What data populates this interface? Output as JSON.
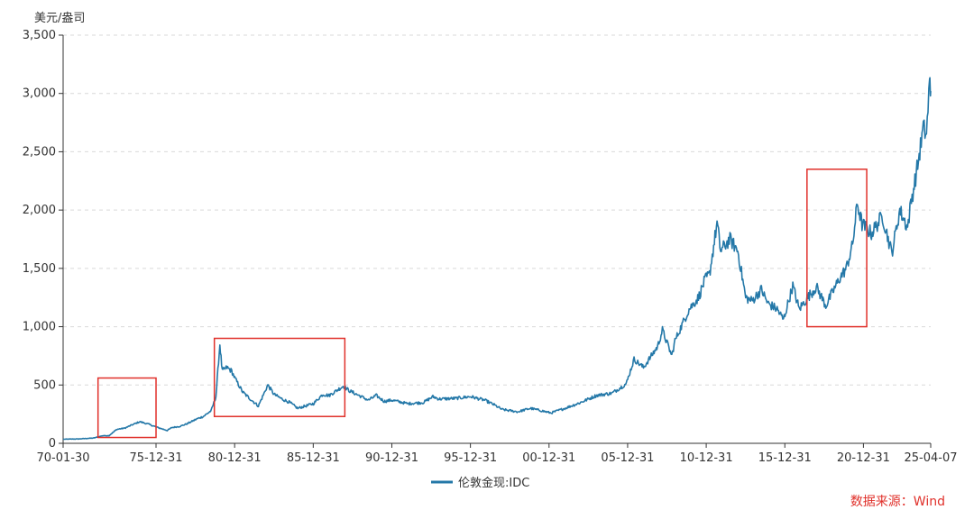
{
  "chart_data": {
    "type": "line",
    "y_unit_label": "美元/盎司",
    "ylim": [
      0,
      3500
    ],
    "y_ticks": [
      "0",
      "500",
      "1,000",
      "1,500",
      "2,000",
      "2,500",
      "3,000",
      "3,500"
    ],
    "y_tick_values": [
      0,
      500,
      1000,
      1500,
      2000,
      2500,
      3000,
      3500
    ],
    "x_ticks": [
      "70-01-30",
      "75-12-31",
      "80-12-31",
      "85-12-31",
      "90-12-31",
      "95-12-31",
      "00-12-31",
      "05-12-31",
      "10-12-31",
      "15-12-31",
      "20-12-31",
      "25-04-07"
    ],
    "x_tick_values": [
      1970.08,
      1975.99,
      1980.99,
      1985.99,
      1990.99,
      1995.99,
      2000.99,
      2005.99,
      2010.99,
      2015.99,
      2020.99,
      2025.27
    ],
    "xlim": [
      1970.08,
      2025.27
    ],
    "grid": true,
    "legend_position": "bottom-center",
    "series": [
      {
        "name": "伦敦金现:IDC",
        "color": "#2478a8",
        "points": [
          [
            1970.08,
            35
          ],
          [
            1971.0,
            37
          ],
          [
            1972.0,
            45
          ],
          [
            1972.6,
            65
          ],
          [
            1973.0,
            66
          ],
          [
            1973.5,
            120
          ],
          [
            1974.0,
            130
          ],
          [
            1974.5,
            160
          ],
          [
            1974.95,
            185
          ],
          [
            1975.5,
            165
          ],
          [
            1976.0,
            140
          ],
          [
            1976.7,
            110
          ],
          [
            1977.0,
            135
          ],
          [
            1977.5,
            145
          ],
          [
            1978.0,
            170
          ],
          [
            1978.6,
            210
          ],
          [
            1979.0,
            230
          ],
          [
            1979.5,
            280
          ],
          [
            1979.8,
            400
          ],
          [
            1980.05,
            850
          ],
          [
            1980.2,
            620
          ],
          [
            1980.5,
            650
          ],
          [
            1980.8,
            620
          ],
          [
            1981.0,
            560
          ],
          [
            1981.5,
            440
          ],
          [
            1981.9,
            390
          ],
          [
            1982.5,
            320
          ],
          [
            1982.9,
            440
          ],
          [
            1983.1,
            500
          ],
          [
            1983.5,
            420
          ],
          [
            1984.0,
            380
          ],
          [
            1984.5,
            350
          ],
          [
            1985.0,
            300
          ],
          [
            1985.5,
            320
          ],
          [
            1986.0,
            340
          ],
          [
            1986.6,
            420
          ],
          [
            1987.0,
            410
          ],
          [
            1987.9,
            490
          ],
          [
            1988.3,
            450
          ],
          [
            1988.9,
            410
          ],
          [
            1989.5,
            370
          ],
          [
            1990.0,
            410
          ],
          [
            1990.5,
            360
          ],
          [
            1991.0,
            370
          ],
          [
            1992.0,
            340
          ],
          [
            1993.0,
            350
          ],
          [
            1993.6,
            400
          ],
          [
            1994.0,
            380
          ],
          [
            1995.0,
            385
          ],
          [
            1996.0,
            400
          ],
          [
            1996.9,
            370
          ],
          [
            1997.5,
            330
          ],
          [
            1998.0,
            290
          ],
          [
            1999.0,
            270
          ],
          [
            1999.8,
            300
          ],
          [
            2000.5,
            280
          ],
          [
            2001.1,
            260
          ],
          [
            2002.0,
            300
          ],
          [
            2003.0,
            350
          ],
          [
            2004.0,
            410
          ],
          [
            2005.0,
            430
          ],
          [
            2005.9,
            510
          ],
          [
            2006.4,
            720
          ],
          [
            2007.0,
            650
          ],
          [
            2007.9,
            830
          ],
          [
            2008.2,
            970
          ],
          [
            2008.8,
            750
          ],
          [
            2009.0,
            880
          ],
          [
            2009.9,
            1150
          ],
          [
            2010.5,
            1250
          ],
          [
            2010.9,
            1400
          ],
          [
            2011.2,
            1450
          ],
          [
            2011.68,
            1890
          ],
          [
            2011.9,
            1650
          ],
          [
            2012.5,
            1750
          ],
          [
            2013.0,
            1650
          ],
          [
            2013.5,
            1250
          ],
          [
            2013.9,
            1220
          ],
          [
            2014.5,
            1320
          ],
          [
            2014.9,
            1200
          ],
          [
            2015.5,
            1150
          ],
          [
            2015.9,
            1060
          ],
          [
            2016.5,
            1350
          ],
          [
            2016.9,
            1150
          ],
          [
            2017.5,
            1260
          ],
          [
            2018.0,
            1340
          ],
          [
            2018.6,
            1180
          ],
          [
            2019.0,
            1290
          ],
          [
            2019.5,
            1420
          ],
          [
            2019.9,
            1500
          ],
          [
            2020.3,
            1700
          ],
          [
            2020.6,
            2060
          ],
          [
            2020.9,
            1880
          ],
          [
            2021.5,
            1800
          ],
          [
            2022.2,
            1950
          ],
          [
            2022.8,
            1630
          ],
          [
            2023.3,
            2000
          ],
          [
            2023.8,
            1850
          ],
          [
            2024.0,
            2050
          ],
          [
            2024.4,
            2350
          ],
          [
            2024.8,
            2700
          ],
          [
            2025.0,
            2650
          ],
          [
            2025.2,
            3100
          ],
          [
            2025.27,
            3020
          ]
        ]
      }
    ],
    "highlight_boxes": [
      {
        "x0": 1972.3,
        "x1": 1975.99,
        "y0": 50,
        "y1": 560
      },
      {
        "x0": 1979.7,
        "x1": 1988.0,
        "y0": 230,
        "y1": 900
      },
      {
        "x0": 2017.4,
        "x1": 2021.2,
        "y0": 1000,
        "y1": 2350
      }
    ],
    "highlight_color": "#e0302a",
    "source_note": "数据来源：Wind"
  }
}
